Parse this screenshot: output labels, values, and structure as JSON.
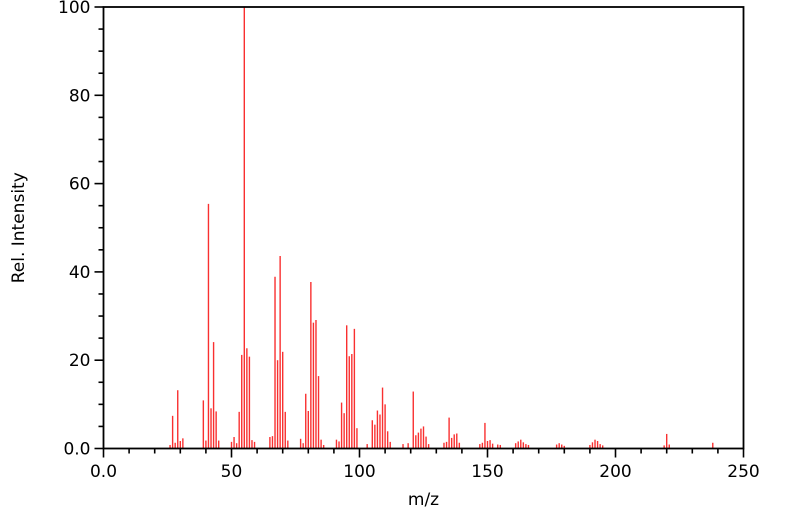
{
  "chart_data": {
    "type": "bar",
    "subtype": "mass-spectrum",
    "title": "",
    "xlabel": "m/z",
    "ylabel": "Rel. Intensity",
    "xlim": [
      0,
      250
    ],
    "ylim": [
      0,
      100
    ],
    "x_major_ticks": [
      0,
      50,
      100,
      150,
      200,
      250
    ],
    "x_major_tick_labels": [
      "0.0",
      "50",
      "100",
      "150",
      "200",
      "250"
    ],
    "x_minor_tick_step": 10,
    "y_major_ticks": [
      0,
      20,
      40,
      60,
      80,
      100
    ],
    "y_major_tick_labels": [
      "0.0",
      "20",
      "40",
      "60",
      "80",
      "100"
    ],
    "y_minor_tick_step": 5,
    "grid": "off",
    "legend": "none",
    "bar_color": "#f93030",
    "axis_color": "#000000",
    "background_color": "#ffffff",
    "base_peak_mz": 55,
    "peaks": [
      [
        26,
        0.8
      ],
      [
        27,
        7.4
      ],
      [
        28,
        1.3
      ],
      [
        29,
        13.2
      ],
      [
        30,
        1.7
      ],
      [
        31,
        2.3
      ],
      [
        39,
        10.9
      ],
      [
        40,
        1.8
      ],
      [
        41,
        55.4
      ],
      [
        42,
        9.1
      ],
      [
        43,
        24.1
      ],
      [
        44,
        8.4
      ],
      [
        45,
        1.8
      ],
      [
        50,
        1.5
      ],
      [
        51,
        2.6
      ],
      [
        52,
        1.2
      ],
      [
        53,
        8.3
      ],
      [
        54,
        21.2
      ],
      [
        55,
        100
      ],
      [
        56,
        22.7
      ],
      [
        57,
        20.8
      ],
      [
        58,
        1.9
      ],
      [
        59,
        1.5
      ],
      [
        65,
        2.6
      ],
      [
        66,
        2.8
      ],
      [
        67,
        38.9
      ],
      [
        68,
        20.0
      ],
      [
        69,
        43.6
      ],
      [
        70,
        21.9
      ],
      [
        71,
        8.3
      ],
      [
        72,
        1.8
      ],
      [
        77,
        2.2
      ],
      [
        78,
        1.2
      ],
      [
        79,
        12.4
      ],
      [
        80,
        8.5
      ],
      [
        81,
        37.7
      ],
      [
        82,
        28.5
      ],
      [
        83,
        29.1
      ],
      [
        84,
        16.4
      ],
      [
        85,
        2.0
      ],
      [
        86,
        0.8
      ],
      [
        91,
        2.0
      ],
      [
        92,
        1.6
      ],
      [
        93,
        10.4
      ],
      [
        94,
        8.0
      ],
      [
        95,
        27.9
      ],
      [
        96,
        20.9
      ],
      [
        97,
        21.4
      ],
      [
        98,
        27.1
      ],
      [
        99,
        4.6
      ],
      [
        103,
        1.0
      ],
      [
        105,
        6.4
      ],
      [
        106,
        5.4
      ],
      [
        107,
        8.6
      ],
      [
        108,
        7.7
      ],
      [
        109,
        13.8
      ],
      [
        110,
        10.0
      ],
      [
        111,
        3.9
      ],
      [
        112,
        1.5
      ],
      [
        117,
        1.0
      ],
      [
        119,
        1.2
      ],
      [
        121,
        12.9
      ],
      [
        122,
        3.0
      ],
      [
        123,
        3.6
      ],
      [
        124,
        4.5
      ],
      [
        125,
        5.0
      ],
      [
        126,
        2.7
      ],
      [
        127,
        1.0
      ],
      [
        133,
        1.3
      ],
      [
        134,
        1.5
      ],
      [
        135,
        7.0
      ],
      [
        136,
        2.4
      ],
      [
        137,
        3.2
      ],
      [
        138,
        3.4
      ],
      [
        139,
        1.3
      ],
      [
        147,
        1.0
      ],
      [
        148,
        1.3
      ],
      [
        149,
        5.8
      ],
      [
        150,
        1.7
      ],
      [
        151,
        1.9
      ],
      [
        152,
        1.1
      ],
      [
        154,
        0.9
      ],
      [
        155,
        0.8
      ],
      [
        161,
        1.2
      ],
      [
        162,
        1.6
      ],
      [
        163,
        2.0
      ],
      [
        164,
        1.4
      ],
      [
        165,
        1.0
      ],
      [
        166,
        0.8
      ],
      [
        177,
        0.9
      ],
      [
        178,
        1.2
      ],
      [
        179,
        0.9
      ],
      [
        180,
        0.6
      ],
      [
        190,
        0.8
      ],
      [
        191,
        1.4
      ],
      [
        192,
        2.0
      ],
      [
        193,
        1.7
      ],
      [
        194,
        1.0
      ],
      [
        195,
        0.7
      ],
      [
        219,
        0.7
      ],
      [
        220,
        3.3
      ],
      [
        221,
        0.9
      ],
      [
        238,
        1.3
      ]
    ]
  }
}
